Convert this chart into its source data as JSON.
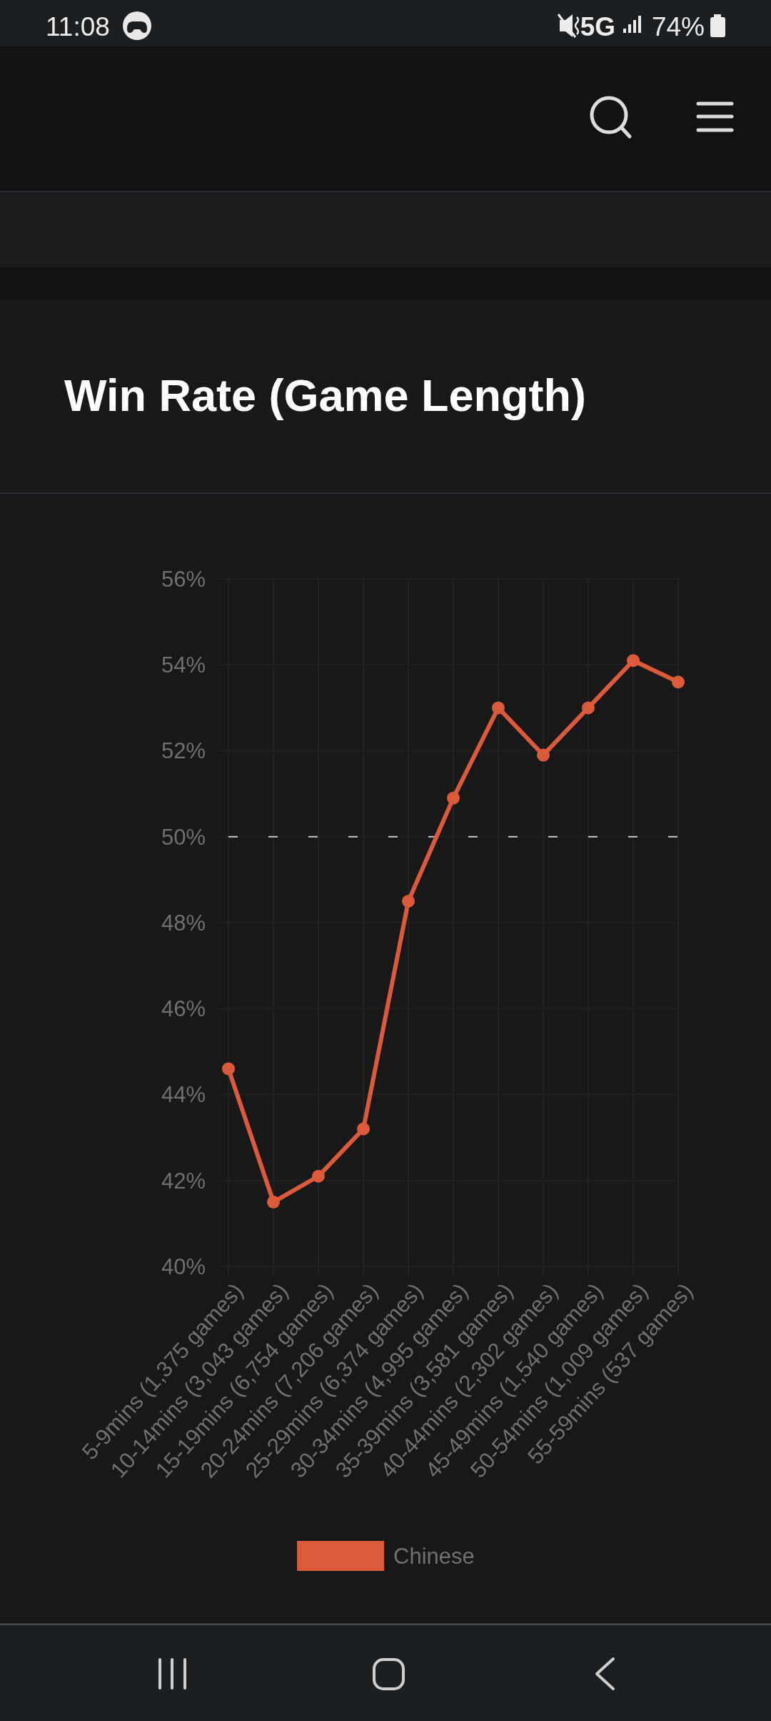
{
  "chart_data": {
    "type": "line",
    "title": "Win Rate (Game Length)",
    "categories": [
      "5-9mins (1,375 games)",
      "10-14mins (3,043 games)",
      "15-19mins (6,754 games)",
      "20-24mins (7,206 games)",
      "25-29mins (6,374 games)",
      "30-34mins (4,995 games)",
      "35-39mins (3,581 games)",
      "40-44mins (2,302 games)",
      "45-49mins (1,540 games)",
      "50-54mins (1,009 games)",
      "55-59mins (537 games)"
    ],
    "series": [
      {
        "name": "Chinese",
        "color": "#dc5a3c",
        "values": [
          44.6,
          41.5,
          42.1,
          43.2,
          48.5,
          50.9,
          53.0,
          51.9,
          53.0,
          54.1,
          53.6
        ]
      }
    ],
    "ylim": [
      40,
      56
    ],
    "yticks": [
      {
        "value": 40,
        "label": "40%"
      },
      {
        "value": 42,
        "label": "42%"
      },
      {
        "value": 44,
        "label": "44%"
      },
      {
        "value": 46,
        "label": "46%"
      },
      {
        "value": 48,
        "label": "48%"
      },
      {
        "value": 50,
        "label": "50%"
      },
      {
        "value": 52,
        "label": "52%"
      },
      {
        "value": 54,
        "label": "54%"
      },
      {
        "value": 56,
        "label": "56%"
      }
    ],
    "ref_lines": [
      {
        "axis": "y",
        "value": 50,
        "color": "#c8c8c8",
        "line_style": "dashed"
      }
    ],
    "grid": true,
    "legend": "bottom",
    "marker": "circle",
    "line_style": "solid",
    "annotations": [
      "11:08",
      "5G",
      "74%"
    ]
  }
}
